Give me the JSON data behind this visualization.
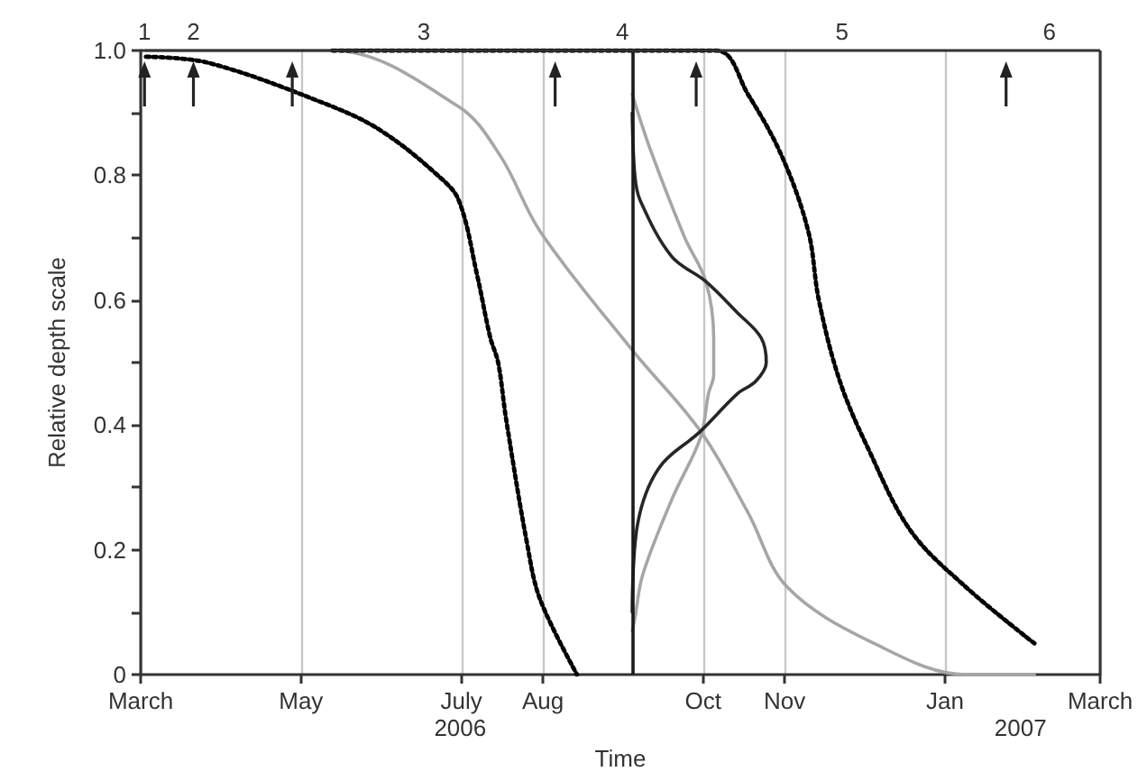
{
  "chart_data": {
    "type": "line",
    "xlabel": "Time",
    "ylabel": "Relative depth scale",
    "xlim": [
      "2006-03-01",
      "2007-03-01"
    ],
    "xticks": [
      {
        "value": "2006-03-01",
        "label": "March"
      },
      {
        "value": "2006-05-01",
        "label": "May"
      },
      {
        "value": "2006-07-01",
        "label": "July"
      },
      {
        "value": "2006-08-01",
        "label": "Aug"
      },
      {
        "value": "2006-10-01",
        "label": "Oct"
      },
      {
        "value": "2006-11-01",
        "label": "Nov"
      },
      {
        "value": "2007-01-01",
        "label": "Jan"
      },
      {
        "value": "2007-03-01",
        "label": "March"
      }
    ],
    "ylim": [
      0,
      1
    ],
    "yticks": [
      0,
      {
        "value": 0.1,
        "label": null
      },
      0.2,
      {
        "value": 0.3,
        "label": null
      },
      0.4,
      {
        "value": 0.5,
        "label": null
      },
      0.6,
      {
        "value": 0.7,
        "label": null
      },
      0.8,
      {
        "value": 0.9,
        "label": null
      },
      {
        "value": 1,
        "label": "1.0"
      }
    ],
    "grid": "x",
    "marker": "none",
    "ref_lines": [
      {
        "axis": "x",
        "value": "2006-09-04",
        "color": "#1a1a1a"
      }
    ],
    "annotations": [
      "1",
      "2",
      "3",
      "4",
      "5",
      "6",
      "2006",
      "2007"
    ],
    "series": [
      {
        "color": "#000000",
        "line_style": "dotted",
        "x": [
          "2006-03-03",
          "2006-03-27",
          "2006-05-13",
          "2006-06-01",
          "2006-06-22",
          "2006-06-30",
          "2006-07-07",
          "2006-07-12",
          "2006-07-15",
          "2006-07-18",
          "2006-07-26",
          "2006-07-31",
          "2006-08-14"
        ],
        "values": [
          0.99,
          0.98,
          0.91,
          0.87,
          0.8,
          0.76,
          0.64,
          0.54,
          0.5,
          0.41,
          0.21,
          0.12,
          0
        ]
      },
      {
        "color": "#a6a6a6",
        "line_style": "solid",
        "x": [
          "2006-03-03",
          "2006-05-13",
          "2006-06-30",
          "2006-07-16",
          "2006-07-31",
          "2006-09-04",
          "2006-09-30",
          "2006-10-18",
          "2006-11-02",
          "2006-12-05",
          "2007-01-09",
          "2007-02-04"
        ],
        "values": [
          1,
          1,
          0.91,
          0.83,
          0.71,
          0.52,
          0.39,
          0.26,
          0.14,
          0.05,
          0,
          0
        ]
      },
      {
        "color": "#000000",
        "line_style": "dotted",
        "x": [
          "2006-05-13",
          "2006-10-06",
          "2006-10-18",
          "2006-10-31",
          "2006-11-10",
          "2006-11-14",
          "2006-11-22",
          "2006-12-03",
          "2006-12-19",
          "2007-01-09",
          "2007-02-04"
        ],
        "values": [
          1,
          1,
          0.93,
          0.83,
          0.71,
          0.6,
          0.47,
          0.36,
          0.23,
          0.14,
          0.05
        ]
      },
      {
        "color": "#a6a6a6",
        "line_style": "solid",
        "x": [
          "2006-09-04",
          "2006-09-11",
          "2006-09-24",
          "2006-10-02",
          "2006-10-05",
          "2006-10-05",
          "2006-10-03",
          "2006-09-30",
          "2006-09-19",
          "2006-09-08",
          "2006-09-05",
          "2006-09-04"
        ],
        "values": [
          0.93,
          0.84,
          0.7,
          0.63,
          0.54,
          0.48,
          0.45,
          0.38,
          0.28,
          0.16,
          0.09,
          0.07
        ]
      },
      {
        "color": "#262626",
        "line_style": "solid",
        "x": [
          "2006-09-04",
          "2006-09-05",
          "2006-09-07",
          "2006-09-19",
          "2006-10-02",
          "2006-10-14",
          "2006-10-23",
          "2006-10-25",
          "2006-10-21",
          "2006-10-14",
          "2006-09-30",
          "2006-09-14",
          "2006-09-06",
          "2006-09-04"
        ],
        "values": [
          0.9,
          0.8,
          0.76,
          0.67,
          0.63,
          0.58,
          0.54,
          0.5,
          0.47,
          0.45,
          0.39,
          0.33,
          0.24,
          0.1
        ]
      }
    ]
  }
}
